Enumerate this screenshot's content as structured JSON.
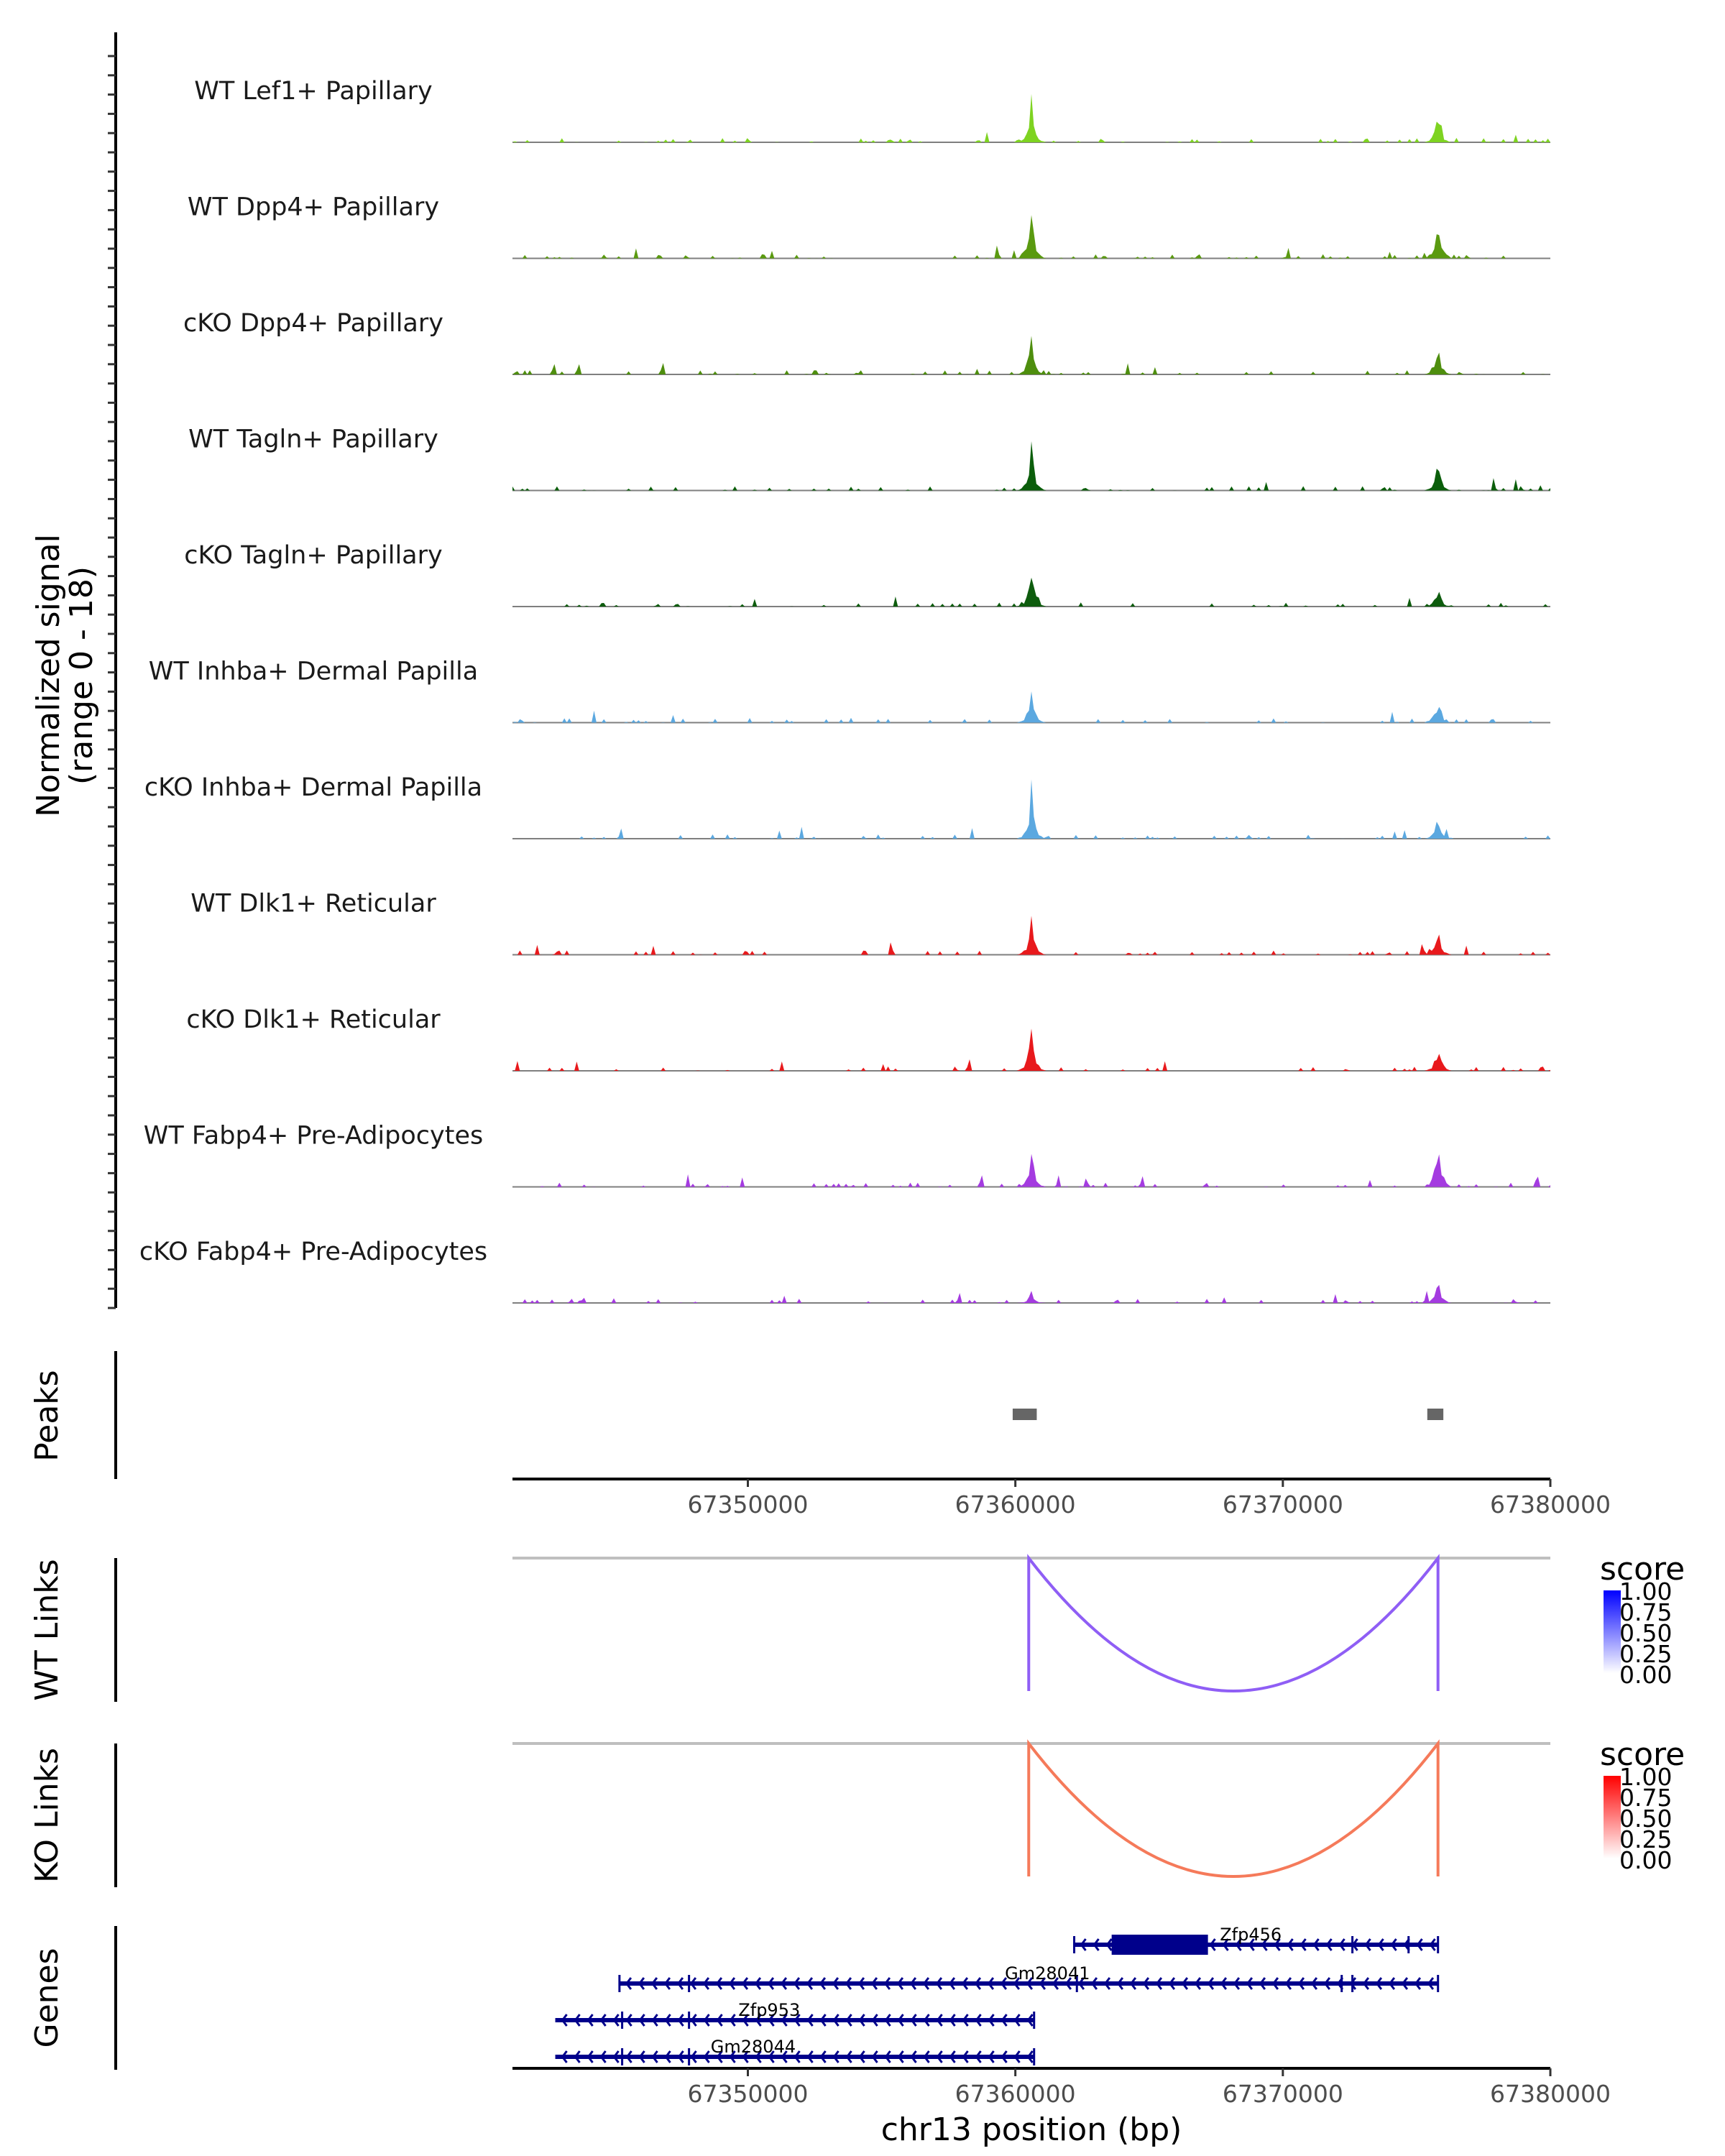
{
  "chart_data": {
    "type": "area",
    "title": "",
    "chromosome": "chr13",
    "xlabel": "chr13 position (bp)",
    "xlim": [
      67341200,
      67380000
    ],
    "x_ticks": [
      67350000,
      67360000,
      67370000,
      67380000
    ],
    "x_tick_labels": [
      "67350000",
      "67360000",
      "67370000",
      "67380000"
    ],
    "coverage_ylabel_line1": "Normalized signal",
    "coverage_ylabel_line2": "(range 0 - 18)",
    "coverage_ylim": [
      0,
      18
    ],
    "tracks": [
      {
        "name": "WT Lef1+ Papillary",
        "color": "#7ED321",
        "peaks": [
          {
            "pos": 67360600,
            "h": 0.95
          },
          {
            "pos": 67375800,
            "h": 0.6
          }
        ]
      },
      {
        "name": "WT Dpp4+ Papillary",
        "color": "#5A9A10",
        "peaks": [
          {
            "pos": 67360600,
            "h": 1.0
          },
          {
            "pos": 67375800,
            "h": 1.0
          }
        ]
      },
      {
        "name": "cKO Dpp4+ Papillary",
        "color": "#4E8E0E",
        "peaks": [
          {
            "pos": 67360600,
            "h": 0.8
          },
          {
            "pos": 67375800,
            "h": 0.55
          }
        ]
      },
      {
        "name": "WT Tagln+ Papillary",
        "color": "#0B5E0B",
        "peaks": [
          {
            "pos": 67360600,
            "h": 1.0
          },
          {
            "pos": 67375800,
            "h": 0.6
          }
        ]
      },
      {
        "name": "cKO Tagln+ Papillary",
        "color": "#0E5C0E",
        "peaks": [
          {
            "pos": 67360600,
            "h": 0.8
          },
          {
            "pos": 67375800,
            "h": 0.45
          }
        ]
      },
      {
        "name": "WT Inhba+ Dermal Papilla",
        "color": "#5BA8E0",
        "peaks": [
          {
            "pos": 67360600,
            "h": 0.75
          },
          {
            "pos": 67375800,
            "h": 0.45
          }
        ]
      },
      {
        "name": "cKO Inhba+ Dermal Papilla",
        "color": "#5BA8E0",
        "peaks": [
          {
            "pos": 67360600,
            "h": 1.0
          },
          {
            "pos": 67375800,
            "h": 0.5
          }
        ]
      },
      {
        "name": "WT Dlk1+ Reticular",
        "color": "#E8191C",
        "peaks": [
          {
            "pos": 67360600,
            "h": 0.75
          },
          {
            "pos": 67375800,
            "h": 0.6
          }
        ]
      },
      {
        "name": "cKO Dlk1+ Reticular",
        "color": "#E8191C",
        "peaks": [
          {
            "pos": 67360600,
            "h": 1.0
          },
          {
            "pos": 67375800,
            "h": 0.55
          }
        ]
      },
      {
        "name": "WT Fabp4+ Pre-Adipocytes",
        "color": "#A43BE0",
        "peaks": [
          {
            "pos": 67360600,
            "h": 0.8
          },
          {
            "pos": 67375800,
            "h": 1.0
          }
        ]
      },
      {
        "name": "cKO Fabp4+ Pre-Adipocytes",
        "color": "#A43BE0",
        "peaks": [
          {
            "pos": 67360600,
            "h": 0.25
          },
          {
            "pos": 67375800,
            "h": 0.5
          }
        ]
      }
    ],
    "peaks_track": {
      "label": "Peaks",
      "regions": [
        [
          67359900,
          67360800
        ],
        [
          67375400,
          67376000
        ]
      ],
      "color": "#666666"
    },
    "links": [
      {
        "label": "WT Links",
        "from": 67360500,
        "to": 67375800,
        "score": 0.65,
        "color": "#8F5EF5",
        "legend_title": "score",
        "legend_high": "#0000FF"
      },
      {
        "label": "KO Links",
        "from": 67360500,
        "to": 67375800,
        "score": 0.6,
        "color": "#F57A5A",
        "legend_title": "score",
        "legend_high": "#FF0000"
      }
    ],
    "legend_ticks": [
      "1.00",
      "0.75",
      "0.50",
      "0.25",
      "0.00"
    ],
    "genes_label": "Genes",
    "genes": [
      {
        "name": "Zfp456",
        "start": 67362200,
        "end": 67375800,
        "strand": "-",
        "cds": [
          67363600,
          67367200
        ],
        "exons": [
          67362200,
          67372600,
          67374700,
          67375800
        ],
        "label_pos": 67368800
      },
      {
        "name": "Gm28041",
        "start": 67345200,
        "end": 67375800,
        "strand": "-",
        "cds": null,
        "exons": [
          67345200,
          67347800,
          67362300,
          67372200,
          67372600,
          67375800
        ],
        "label_pos": 67361200
      },
      {
        "name": "Zfp953",
        "start": 67342800,
        "end": 67360700,
        "strand": "-",
        "cds": null,
        "exons": [
          67345300,
          67347800,
          67360700
        ],
        "label_pos": 67350800
      },
      {
        "name": "Gm28044",
        "start": 67342800,
        "end": 67360700,
        "strand": "-",
        "cds": null,
        "exons": [
          67345300,
          67347800,
          67360700
        ],
        "label_pos": 67350200
      }
    ]
  }
}
